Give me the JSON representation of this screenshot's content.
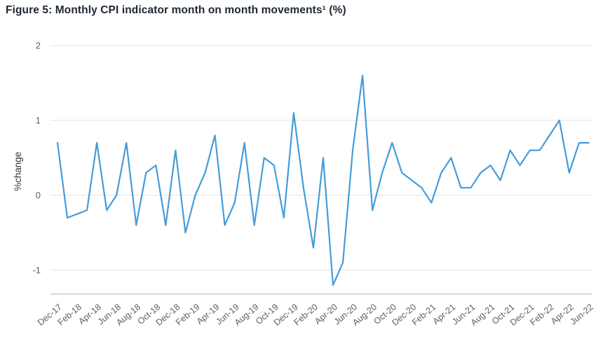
{
  "figure": {
    "title": "Figure 5: Monthly CPI indicator month on month movements¹ (%)"
  },
  "colors": {
    "line": "#449cd9",
    "grid": "#e3e3e3",
    "axis_line": "#b4c3d6",
    "tick_text": "#595f66",
    "ylabel_text": "#33383f",
    "title_text": "#1d2733",
    "background": "#ffffff"
  },
  "chart_data": {
    "type": "line",
    "title": "Figure 5: Monthly CPI indicator month on month movements¹ (%)",
    "xlabel": "",
    "ylabel": "%change",
    "ylim": [
      -1.3,
      2.1
    ],
    "yticks": [
      2,
      1,
      0,
      -1
    ],
    "grid": true,
    "legend": false,
    "x_tick_every": 2,
    "x_tick_labels": [
      "Dec-17",
      "Feb-18",
      "Apr-18",
      "Jun-18",
      "Aug-18",
      "Oct-18",
      "Dec-18",
      "Feb-19",
      "Apr-19",
      "Jun-19",
      "Aug-19",
      "Oct-19",
      "Dec-19",
      "Feb-20",
      "Apr-20",
      "Jun-20",
      "Aug-20",
      "Oct-20",
      "Dec-20",
      "Feb-21",
      "Apr-21",
      "Jun-21",
      "Aug-21",
      "Oct-21",
      "Dec-21",
      "Feb-22",
      "Apr-22",
      "Jun-22"
    ],
    "categories": [
      "Dec-17",
      "Jan-18",
      "Feb-18",
      "Mar-18",
      "Apr-18",
      "May-18",
      "Jun-18",
      "Jul-18",
      "Aug-18",
      "Sep-18",
      "Oct-18",
      "Nov-18",
      "Dec-18",
      "Jan-19",
      "Feb-19",
      "Mar-19",
      "Apr-19",
      "May-19",
      "Jun-19",
      "Jul-19",
      "Aug-19",
      "Sep-19",
      "Oct-19",
      "Nov-19",
      "Dec-19",
      "Jan-20",
      "Feb-20",
      "Mar-20",
      "Apr-20",
      "May-20",
      "Jun-20",
      "Jul-20",
      "Aug-20",
      "Sep-20",
      "Oct-20",
      "Nov-20",
      "Dec-20",
      "Jan-21",
      "Feb-21",
      "Mar-21",
      "Apr-21",
      "May-21",
      "Jun-21",
      "Jul-21",
      "Aug-21",
      "Sep-21",
      "Oct-21",
      "Nov-21",
      "Dec-21",
      "Jan-22",
      "Feb-22",
      "Mar-22",
      "Apr-22",
      "May-22",
      "Jun-22"
    ],
    "values": [
      0.7,
      -0.3,
      -0.25,
      -0.2,
      0.7,
      -0.2,
      0.0,
      0.7,
      -0.4,
      0.3,
      0.4,
      -0.4,
      0.6,
      -0.5,
      0.0,
      0.3,
      0.8,
      -0.4,
      -0.1,
      0.7,
      -0.4,
      0.5,
      0.4,
      -0.3,
      1.1,
      0.1,
      -0.7,
      0.5,
      -1.2,
      -0.9,
      0.6,
      1.6,
      -0.2,
      0.3,
      0.7,
      0.3,
      0.2,
      0.1,
      -0.1,
      0.3,
      0.5,
      0.1,
      0.1,
      0.3,
      0.4,
      0.2,
      0.6,
      0.4,
      0.6,
      0.6,
      0.8,
      1.0,
      0.3,
      0.7,
      0.7
    ]
  }
}
